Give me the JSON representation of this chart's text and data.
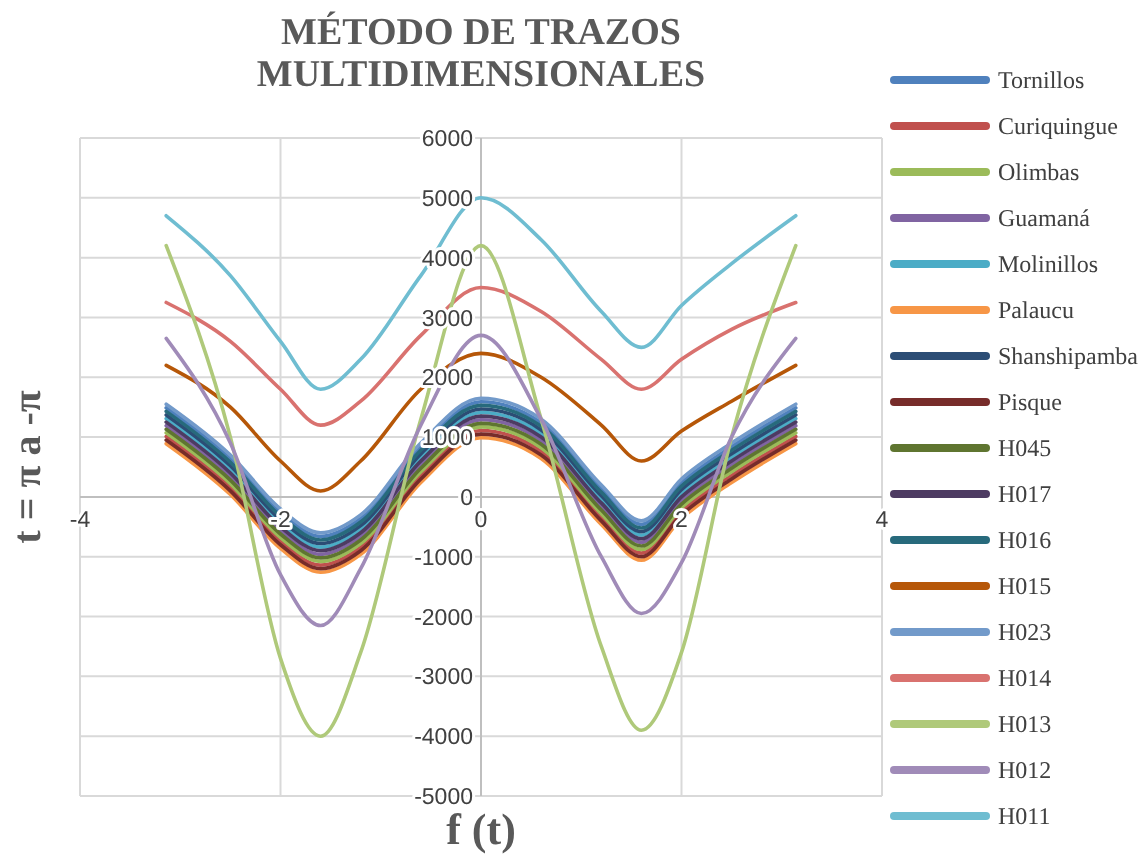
{
  "chart_data": {
    "type": "line",
    "title": "MÉTODO DE TRAZOS MULTIDIMENSIONALES",
    "xlabel": "f (t)",
    "ylabel": "t = π a -π",
    "x": [
      -3.14,
      -2.5,
      -2,
      -1.6,
      -1.2,
      -0.6,
      0,
      0.6,
      1.2,
      1.6,
      2,
      2.5,
      3.14
    ],
    "xlim": [
      -4,
      4
    ],
    "xticks": [
      -4,
      -2,
      0,
      2,
      4
    ],
    "ylim": [
      -5000,
      6000
    ],
    "yticks": [
      -5000,
      -4000,
      -3000,
      -2000,
      -1000,
      0,
      1000,
      2000,
      3000,
      4000,
      5000,
      6000
    ],
    "grid": true,
    "legend": "right",
    "series": [
      {
        "name": "Tornillos",
        "color": "#4f81bd",
        "values": [
          1490,
          640,
          -260,
          -660,
          -360,
          840,
          1590,
          1240,
          140,
          -460,
          240,
          840,
          1490
        ]
      },
      {
        "name": "Curiquingue",
        "color": "#c0504d",
        "values": [
          1010,
          160,
          -740,
          -1140,
          -840,
          360,
          1110,
          760,
          -340,
          -940,
          -240,
          360,
          1010
        ]
      },
      {
        "name": "Olimbas",
        "color": "#9bbb59",
        "values": [
          1070,
          220,
          -680,
          -1080,
          -780,
          420,
          1170,
          820,
          -280,
          -880,
          -180,
          420,
          1070
        ]
      },
      {
        "name": "Guamaná",
        "color": "#8064a2",
        "values": [
          1190,
          340,
          -560,
          -960,
          -660,
          540,
          1290,
          940,
          -160,
          -760,
          -60,
          540,
          1190
        ]
      },
      {
        "name": "Molinillos",
        "color": "#4bacc6",
        "values": [
          1310,
          460,
          -440,
          -840,
          -540,
          660,
          1410,
          1060,
          -40,
          -640,
          60,
          660,
          1310
        ]
      },
      {
        "name": "Palaucu",
        "color": "#f79646",
        "values": [
          890,
          40,
          -860,
          -1260,
          -960,
          240,
          990,
          640,
          -460,
          -1060,
          -360,
          240,
          890
        ]
      },
      {
        "name": "Shanshipamba",
        "color": "#2c4d75",
        "values": [
          1370,
          520,
          -380,
          -780,
          -480,
          720,
          1470,
          1120,
          20,
          -580,
          120,
          720,
          1370
        ]
      },
      {
        "name": "Pisque",
        "color": "#772c2a",
        "values": [
          950,
          100,
          -800,
          -1200,
          -900,
          300,
          1050,
          700,
          -400,
          -1000,
          -300,
          300,
          950
        ]
      },
      {
        "name": "H045",
        "color": "#5f7530",
        "values": [
          1130,
          280,
          -620,
          -1020,
          -720,
          480,
          1230,
          880,
          -220,
          -820,
          -120,
          480,
          1130
        ]
      },
      {
        "name": "H017",
        "color": "#4d3b62",
        "values": [
          1250,
          400,
          -500,
          -900,
          -600,
          600,
          1350,
          1000,
          -100,
          -700,
          0,
          600,
          1250
        ]
      },
      {
        "name": "H016",
        "color": "#276a7c",
        "values": [
          1430,
          580,
          -320,
          -720,
          -420,
          780,
          1530,
          1180,
          80,
          -520,
          180,
          780,
          1430
        ]
      },
      {
        "name": "H015",
        "color": "#b65708",
        "values": [
          2200,
          1500,
          600,
          100,
          600,
          1800,
          2400,
          2000,
          1200,
          600,
          1100,
          1600,
          2200
        ]
      },
      {
        "name": "H023",
        "color": "#729aca",
        "values": [
          1550,
          700,
          -200,
          -600,
          -300,
          900,
          1650,
          1300,
          200,
          -400,
          300,
          900,
          1550
        ]
      },
      {
        "name": "H014",
        "color": "#d9726f",
        "values": [
          3250,
          2600,
          1800,
          1200,
          1600,
          2700,
          3500,
          3100,
          2300,
          1800,
          2300,
          2800,
          3250
        ]
      },
      {
        "name": "H013",
        "color": "#afc97a",
        "values": [
          4200,
          1000,
          -2700,
          -4000,
          -2600,
          1300,
          4200,
          1300,
          -2500,
          -3900,
          -2600,
          1000,
          4200
        ]
      },
      {
        "name": "H012",
        "color": "#a08bb8",
        "values": [
          2650,
          900,
          -1300,
          -2150,
          -1200,
          1200,
          2700,
          1300,
          -1000,
          -1950,
          -1100,
          1000,
          2650
        ]
      },
      {
        "name": "H011",
        "color": "#6fbdd1",
        "values": [
          4700,
          3700,
          2600,
          1800,
          2300,
          3700,
          5000,
          4300,
          3100,
          2500,
          3200,
          3900,
          4700
        ]
      }
    ]
  }
}
